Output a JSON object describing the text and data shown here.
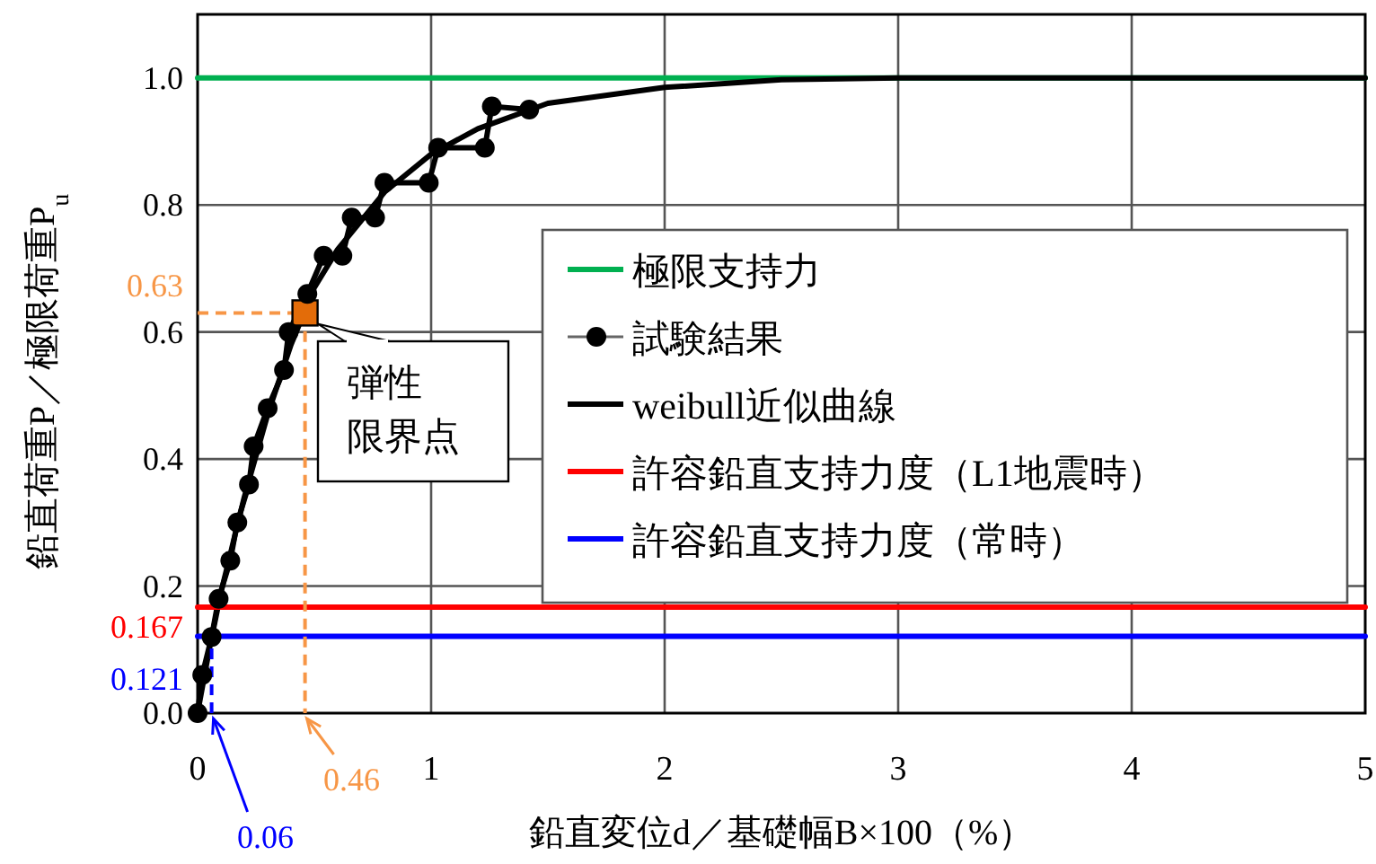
{
  "chart_data": {
    "type": "line",
    "xlabel": "鉛直変位d／基礎幅B×100（%）",
    "ylabel": "鉛直荷重P／極限荷重P$_{u}$",
    "xlim": [
      0,
      5
    ],
    "ylim": [
      0,
      1.1
    ],
    "xticks": [
      0,
      1,
      2,
      3,
      4,
      5
    ],
    "yticks": [
      {
        "value": 0,
        "label": "0.0"
      },
      {
        "value": 0.2,
        "label": "0.2"
      },
      {
        "value": 0.4,
        "label": "0.4"
      },
      {
        "value": 0.6,
        "label": "0.6"
      },
      {
        "value": 0.8,
        "label": "0.8"
      },
      {
        "value": 1.0,
        "label": "1.0"
      }
    ],
    "grid": true,
    "legend": "right",
    "series": [
      {
        "name": "極限支持力",
        "color": "#00b050",
        "x": [
          0,
          5
        ],
        "values": [
          1.0,
          1.0
        ]
      },
      {
        "name": "試験結果",
        "color": "#000000",
        "marker": "circle",
        "x": [
          0,
          0.02,
          0.06,
          0.09,
          0.14,
          0.17,
          0.22,
          0.24,
          0.3,
          0.37,
          0.39,
          0.47,
          0.54,
          0.62,
          0.66,
          0.76,
          0.8,
          0.99,
          1.03,
          1.23,
          1.26,
          1.42
        ],
        "values": [
          0,
          0.06,
          0.12,
          0.18,
          0.24,
          0.3,
          0.36,
          0.42,
          0.48,
          0.54,
          0.6,
          0.66,
          0.72,
          0.72,
          0.78,
          0.78,
          0.835,
          0.835,
          0.89,
          0.89,
          0.955,
          0.95
        ]
      },
      {
        "name": "weibull近似曲線",
        "color": "#000000",
        "x": [
          0,
          0.05,
          0.1,
          0.2,
          0.3,
          0.4,
          0.5,
          0.6,
          0.8,
          1.0,
          1.2,
          1.5,
          2.0,
          2.5,
          3.0,
          4.0,
          5.0
        ],
        "values": [
          0,
          0.1,
          0.19,
          0.34,
          0.47,
          0.58,
          0.67,
          0.73,
          0.82,
          0.88,
          0.92,
          0.96,
          0.985,
          0.997,
          1.0,
          1.0,
          1.0
        ]
      },
      {
        "name": "許容鉛直支持力度（L1地震時）",
        "color": "#ff0000",
        "x": [
          0,
          5
        ],
        "values": [
          0.167,
          0.167
        ]
      },
      {
        "name": "許容鉛直支持力度（常時）",
        "color": "#0000ff",
        "x": [
          0,
          5
        ],
        "values": [
          0.121,
          0.121
        ]
      },
      {
        "color": "#f79646",
        "line_style": "dashed",
        "x": [
          0,
          0.46,
          0.46
        ],
        "values": [
          0.63,
          0.63,
          0
        ]
      },
      {
        "color": "#0000ff",
        "line_style": "dashed",
        "x": [
          0.06,
          0.06
        ],
        "values": [
          0,
          0.121
        ]
      },
      {
        "type": "scatter",
        "marker": "square",
        "color": "#e36c09",
        "x": [
          0.46
        ],
        "values": [
          0.63
        ]
      }
    ],
    "annotations": [
      {
        "text": "0.63",
        "x": 0,
        "y": 0.63
      },
      {
        "text": "0.167",
        "x": 0,
        "y": 0.167
      },
      {
        "text": "0.121",
        "x": 0,
        "y": 0.121
      },
      {
        "text": "0.46",
        "x": 0.46,
        "y": 0
      },
      {
        "text": "0.06",
        "x": 0.06,
        "y": 0
      },
      {
        "text": "弾性限界点",
        "x": 0.46,
        "y": 0.63
      }
    ]
  }
}
